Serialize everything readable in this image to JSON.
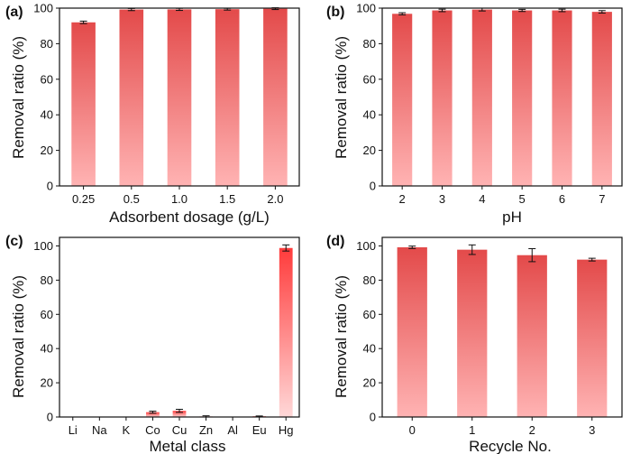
{
  "chart_data": [
    {
      "type": "bar",
      "panel_label": "(a)",
      "xlabel": "Adsorbent dosage (g/L)",
      "ylabel": "Removal ratio (%)",
      "categories": [
        "0.25",
        "0.5",
        "1.0",
        "1.5",
        "2.0"
      ],
      "values": [
        92.0,
        99.2,
        99.3,
        99.4,
        99.7
      ],
      "errors": [
        0.7,
        0.6,
        0.6,
        0.5,
        0.5
      ],
      "ylim": [
        0,
        100
      ],
      "yticks": [
        "0",
        "20",
        "40",
        "60",
        "80",
        "100"
      ],
      "bar_style": "gradient",
      "grid": false
    },
    {
      "type": "bar",
      "panel_label": "(b)",
      "xlabel": "pH",
      "ylabel": "Removal ratio (%)",
      "categories": [
        "2",
        "3",
        "4",
        "5",
        "6",
        "7"
      ],
      "values": [
        96.8,
        98.7,
        99.2,
        98.7,
        98.7,
        97.9
      ],
      "errors": [
        0.6,
        0.7,
        0.8,
        0.6,
        0.7,
        0.7
      ],
      "ylim": [
        0,
        100
      ],
      "yticks": [
        "0",
        "20",
        "40",
        "60",
        "80",
        "100"
      ],
      "bar_style": "gradient",
      "grid": false
    },
    {
      "type": "bar",
      "panel_label": "(c)",
      "xlabel": "Metal class",
      "ylabel": "Removal ratio (%)",
      "categories": [
        "Li",
        "Na",
        "K",
        "Co",
        "Cu",
        "Zn",
        "Al",
        "Eu",
        "Hg"
      ],
      "values": [
        0,
        0,
        0,
        2.8,
        3.6,
        0.3,
        0,
        0.4,
        98.8
      ],
      "errors": [
        0,
        0,
        0,
        0.6,
        0.9,
        0.4,
        0,
        0.2,
        1.8
      ],
      "ylim": [
        0,
        105
      ],
      "yticks": [
        "0",
        "20",
        "40",
        "60",
        "80",
        "100"
      ],
      "bar_style": "solid",
      "grid": false
    },
    {
      "type": "bar",
      "panel_label": "(d)",
      "xlabel": "Recycle No.",
      "ylabel": "Removal ratio (%)",
      "categories": [
        "0",
        "1",
        "2",
        "3"
      ],
      "values": [
        99.2,
        97.8,
        94.6,
        92.0
      ],
      "errors": [
        0.7,
        2.8,
        3.8,
        0.8
      ],
      "ylim": [
        0,
        105
      ],
      "yticks": [
        "0",
        "20",
        "40",
        "60",
        "80",
        "100"
      ],
      "bar_style": "gradient",
      "grid": false
    }
  ],
  "colors": {
    "bar_top": "#e34a4a",
    "bar_bottom": "#ffb3b3",
    "bar_solid_top": "#ff3b3b",
    "bar_solid_bottom": "#ffd8d8",
    "error_bar": "#111111",
    "axis": "#111111"
  }
}
